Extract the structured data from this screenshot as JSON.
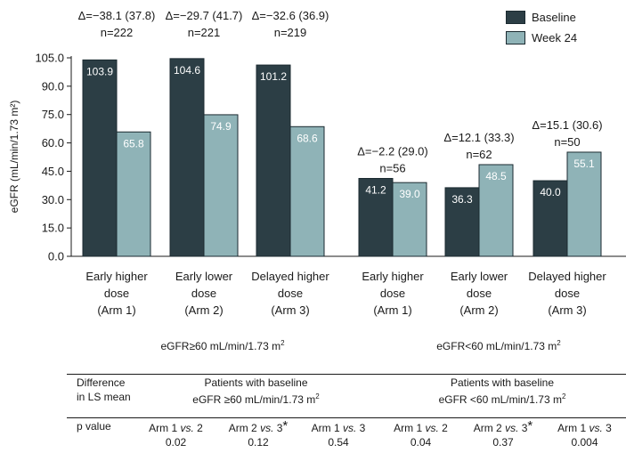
{
  "chart_data": {
    "type": "bar",
    "title": "",
    "ylabel": "eGFR (mL/min/1.73 m²)",
    "xlabel": "",
    "ylim": [
      0,
      105
    ],
    "yticks": [
      "0.0",
      "15.0",
      "30.0",
      "45.0",
      "60.0",
      "75.0",
      "90.0",
      "105.0"
    ],
    "legend_position": "top-right",
    "series": [
      {
        "name": "Baseline",
        "color": "#2c3e45",
        "values": [
          103.9,
          104.6,
          101.2,
          41.2,
          36.3,
          40.0
        ]
      },
      {
        "name": "Week 24",
        "color": "#8fb3b7",
        "values": [
          65.8,
          74.9,
          68.6,
          39.0,
          48.5,
          55.1
        ]
      }
    ],
    "value_labels": {
      "baseline": [
        "103.9",
        "104.6",
        "101.2",
        "41.2",
        "36.3",
        "40.0"
      ],
      "week24": [
        "65.8",
        "74.9",
        "68.6",
        "39.0",
        "48.5",
        "55.1"
      ]
    },
    "categories": [
      {
        "line1": "Early higher",
        "line2": "dose",
        "line3": "(Arm 1)"
      },
      {
        "line1": "Early lower",
        "line2": "dose",
        "line3": "(Arm 2)"
      },
      {
        "line1": "Delayed higher",
        "line2": "dose",
        "line3": "(Arm 3)"
      },
      {
        "line1": "Early higher",
        "line2": "dose",
        "line3": "(Arm 1)"
      },
      {
        "line1": "Early lower",
        "line2": "dose",
        "line3": "(Arm 2)"
      },
      {
        "line1": "Delayed higher",
        "line2": "dose",
        "line3": "(Arm 3)"
      }
    ],
    "annotations": [
      {
        "delta": "Δ=−38.1 (37.8)",
        "n": "n=222"
      },
      {
        "delta": "Δ=−29.7 (41.7)",
        "n": "n=221"
      },
      {
        "delta": "Δ=−32.6 (36.9)",
        "n": "n=219"
      },
      {
        "delta": "Δ=−2.2 (29.0)",
        "n": "n=56"
      },
      {
        "delta": "Δ=12.1 (33.3)",
        "n": "n=62"
      },
      {
        "delta": "Δ=15.1 (30.6)",
        "n": "n=50"
      }
    ],
    "groups": [
      {
        "label": "eGFR≥60 mL/min/1.73 m",
        "sup": "2"
      },
      {
        "label": "eGFR<60 mL/min/1.73 m",
        "sup": "2"
      }
    ]
  },
  "table": {
    "row1_label_a": "Difference",
    "row1_label_b": "in LS mean",
    "group1_line1": "Patients with baseline",
    "group1_line2": "eGFR ≥60 mL/min/1.73 m",
    "group2_line1": "Patients with baseline",
    "group2_line2": "eGFR <60 mL/min/1.73 m",
    "sup": "2",
    "pvalue_label": "p value",
    "comparisons": [
      {
        "a": "Arm 1 ",
        "vs": "vs.",
        "b": " 2",
        "star": "",
        "p": "0.02"
      },
      {
        "a": "Arm 2 ",
        "vs": "vs.",
        "b": " 3",
        "star": "*",
        "p": "0.12"
      },
      {
        "a": "Arm 1 ",
        "vs": "vs.",
        "b": " 3",
        "star": "",
        "p": "0.54"
      },
      {
        "a": "Arm 1 ",
        "vs": "vs.",
        "b": " 2",
        "star": "",
        "p": "0.04"
      },
      {
        "a": "Arm 2 ",
        "vs": "vs.",
        "b": " 3",
        "star": "*",
        "p": "0.37"
      },
      {
        "a": "Arm 1 ",
        "vs": "vs.",
        "b": " 3",
        "star": "",
        "p": "0.004"
      }
    ]
  }
}
